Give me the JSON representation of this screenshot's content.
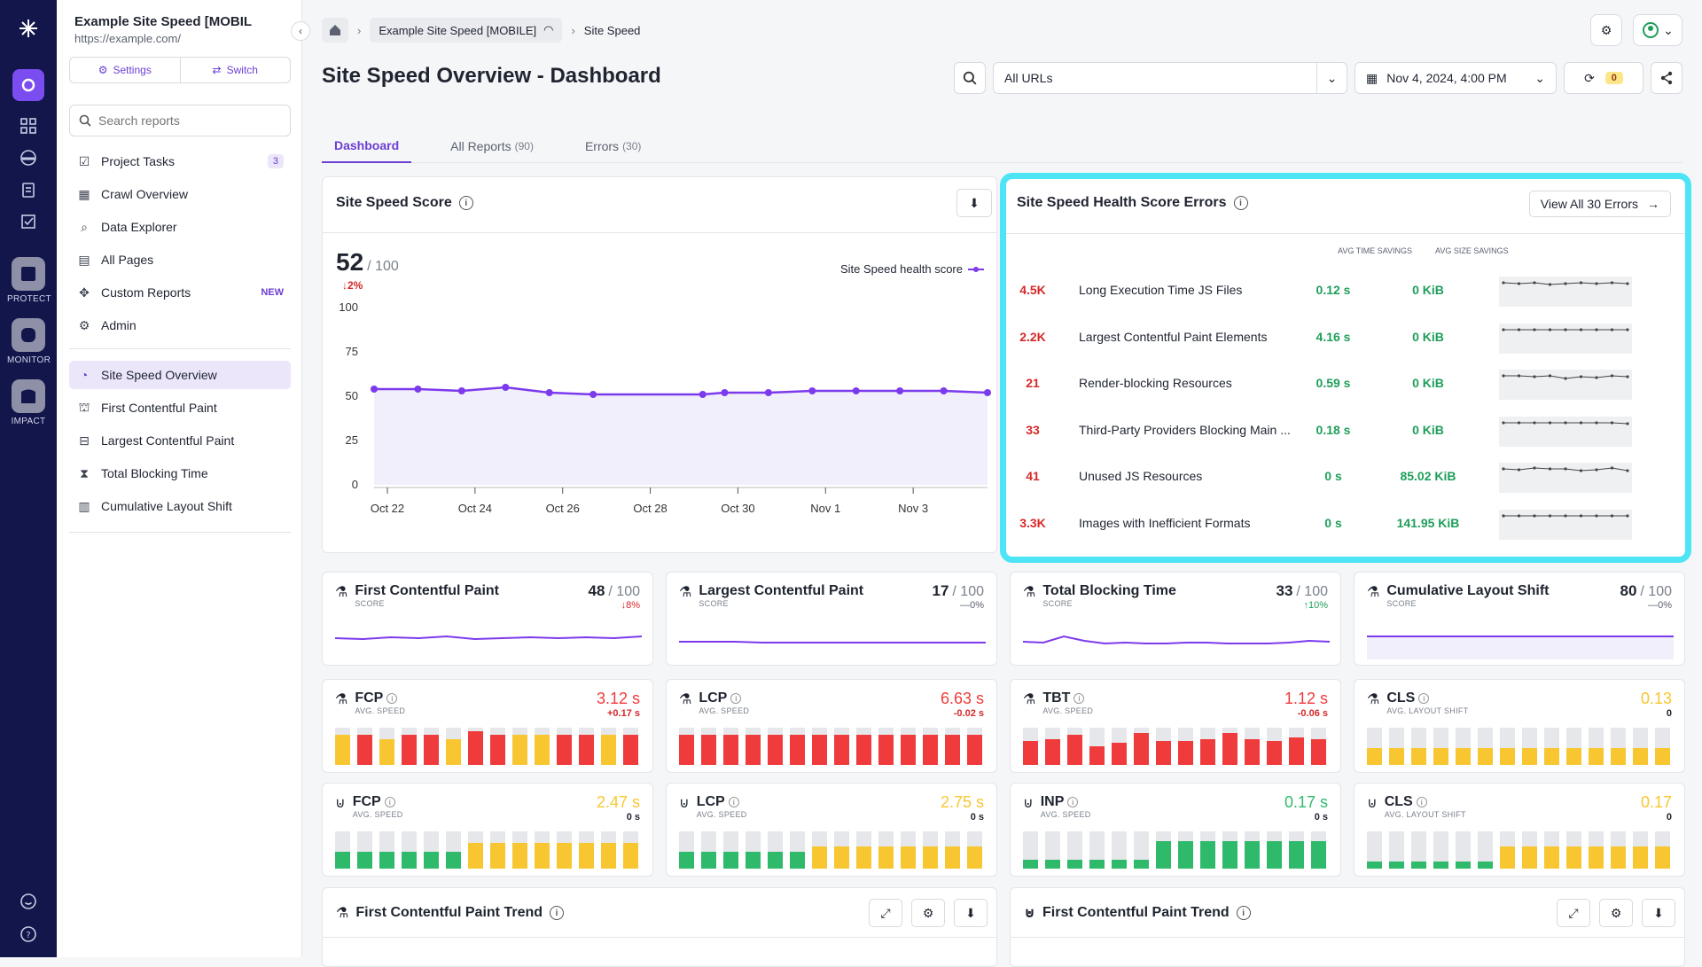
{
  "rail": {
    "protect": "PROTECT",
    "monitor": "MONITOR",
    "impact": "IMPACT"
  },
  "project": {
    "name": "Example Site Speed [MOBILE]",
    "url": "https://example.com/"
  },
  "side_buttons": {
    "settings": "Settings",
    "switch": "Switch"
  },
  "search": {
    "placeholder": "Search reports"
  },
  "nav": [
    {
      "label": "Project Tasks",
      "badge": "3"
    },
    {
      "label": "Crawl Overview"
    },
    {
      "label": "Data Explorer"
    },
    {
      "label": "All Pages"
    },
    {
      "label": "Custom Reports",
      "tag": "NEW"
    },
    {
      "label": "Admin"
    }
  ],
  "nav2": [
    "Site Speed Overview",
    "First Contentful Paint",
    "Largest Contentful Paint",
    "Total Blocking Time",
    "Cumulative Layout Shift"
  ],
  "breadcrumb": {
    "project": "Example Site Speed [MOBILE]",
    "page": "Site Speed"
  },
  "page_title": "Site Speed Overview - Dashboard",
  "filters": {
    "urls": "All URLs",
    "date": "Nov 4, 2024, 4:00 PM",
    "count": "0"
  },
  "tabs": [
    {
      "label": "Dashboard",
      "count": ""
    },
    {
      "label": "All Reports",
      "count": "(90)"
    },
    {
      "label": "Errors",
      "count": "(30)"
    }
  ],
  "score_card": {
    "title": "Site Speed Score",
    "score": "52",
    "of": "/ 100",
    "change": "2%",
    "legend": "Site Speed health score"
  },
  "chart_data": {
    "type": "area",
    "title": "Site Speed Score",
    "xlabel": "",
    "ylabel": "",
    "ylim": [
      0,
      100
    ],
    "yticks": [
      "100",
      "75",
      "50",
      "25",
      "0"
    ],
    "xticks": [
      "Oct 22",
      "Oct 24",
      "Oct 26",
      "Oct 28",
      "Oct 30",
      "Nov 1",
      "Nov 3"
    ],
    "series": [
      {
        "name": "Site Speed health score",
        "x": [
          0,
          1,
          2,
          3,
          4,
          5,
          7.5,
          8,
          9,
          10,
          11,
          12,
          13,
          14
        ],
        "values": [
          54,
          54,
          53,
          55,
          52,
          51,
          51,
          52,
          52,
          53,
          53,
          53,
          53,
          52
        ]
      }
    ]
  },
  "errors": {
    "title": "Site Speed Health Score Errors",
    "button": "View All 30 Errors",
    "col_time": "AVG TIME SAVINGS",
    "col_size": "AVG SIZE SAVINGS",
    "rows": [
      {
        "count": "4.5K",
        "name": "Long Execution Time JS Files",
        "time": "0.12 s",
        "size": "0 KiB"
      },
      {
        "count": "2.2K",
        "name": "Largest Contentful Paint Elements",
        "time": "4.16 s",
        "size": "0 KiB"
      },
      {
        "count": "21",
        "name": "Render-blocking Resources",
        "time": "0.59 s",
        "size": "0 KiB"
      },
      {
        "count": "33",
        "name": "Third-Party Providers Blocking Main ...",
        "time": "0.18 s",
        "size": "0 KiB"
      },
      {
        "count": "41",
        "name": "Unused JS Resources",
        "time": "0 s",
        "size": "85.02 KiB"
      },
      {
        "count": "3.3K",
        "name": "Images with Inefficient Formats",
        "time": "0 s",
        "size": "141.95 KiB"
      }
    ]
  },
  "score_tiles": [
    {
      "title": "First Contentful Paint",
      "sub": "SCORE",
      "score": "48",
      "of": "/ 100",
      "change": "8%",
      "dir": "down"
    },
    {
      "title": "Largest Contentful Paint",
      "sub": "SCORE",
      "score": "17",
      "of": "/ 100",
      "change": "0%",
      "dir": "flat"
    },
    {
      "title": "Total Blocking Time",
      "sub": "SCORE",
      "score": "33",
      "of": "/ 100",
      "change": "10%",
      "dir": "up"
    },
    {
      "title": "Cumulative Layout Shift",
      "sub": "SCORE",
      "score": "80",
      "of": "/ 100",
      "change": "0%",
      "dir": "flat"
    }
  ],
  "lab_tiles": [
    {
      "title": "FCP",
      "sub": "AVG. SPEED",
      "value": "3.12 s",
      "change": "+0.17 s",
      "color": "red"
    },
    {
      "title": "LCP",
      "sub": "AVG. SPEED",
      "value": "6.63 s",
      "change": "-0.02 s",
      "color": "red"
    },
    {
      "title": "TBT",
      "sub": "AVG. SPEED",
      "value": "1.12 s",
      "change": "-0.06 s",
      "color": "red"
    },
    {
      "title": "CLS",
      "sub": "AVG. LAYOUT SHIFT",
      "value": "0.13",
      "change": "0",
      "color": "yel"
    }
  ],
  "field_tiles": [
    {
      "title": "FCP",
      "sub": "AVG. SPEED",
      "value": "2.47 s",
      "change": "0 s",
      "color": "yel"
    },
    {
      "title": "LCP",
      "sub": "AVG. SPEED",
      "value": "2.75 s",
      "change": "0 s",
      "color": "yel"
    },
    {
      "title": "INP",
      "sub": "AVG. SPEED",
      "value": "0.17 s",
      "change": "0 s",
      "color": "green"
    },
    {
      "title": "CLS",
      "sub": "AVG. LAYOUT SHIFT",
      "value": "0.17",
      "change": "0",
      "color": "yel"
    }
  ],
  "trend_cards": [
    {
      "title": "First Contentful Paint Trend"
    },
    {
      "title": "First Contentful Paint Trend"
    }
  ]
}
